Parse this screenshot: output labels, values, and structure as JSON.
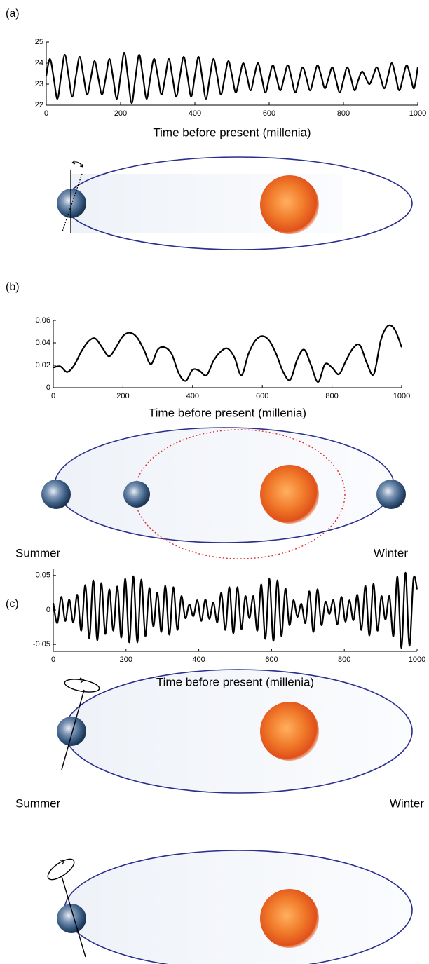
{
  "chart_data": [
    {
      "type": "line",
      "panel_label": "(a)",
      "x_label": "Time before present (millenia)",
      "color": "#000000",
      "xlim": [
        0,
        1000
      ],
      "xticks": [
        0,
        200,
        400,
        600,
        800,
        1000
      ],
      "ylim": [
        22,
        25
      ],
      "yticks": [
        22,
        23,
        24,
        25
      ],
      "x": [
        0,
        10,
        20,
        30,
        40,
        50,
        60,
        70,
        80,
        90,
        100,
        110,
        120,
        130,
        140,
        150,
        160,
        170,
        180,
        190,
        200,
        210,
        220,
        230,
        240,
        250,
        260,
        270,
        280,
        290,
        300,
        310,
        320,
        330,
        340,
        350,
        360,
        370,
        380,
        390,
        400,
        410,
        420,
        430,
        440,
        450,
        460,
        470,
        480,
        490,
        500,
        510,
        520,
        530,
        540,
        550,
        560,
        570,
        580,
        590,
        600,
        610,
        620,
        630,
        640,
        650,
        660,
        670,
        680,
        690,
        700,
        710,
        720,
        730,
        740,
        750,
        760,
        770,
        780,
        790,
        800,
        810,
        820,
        830,
        840,
        850,
        860,
        870,
        880,
        890,
        900,
        910,
        920,
        930,
        940,
        950,
        960,
        970,
        980,
        990,
        1000
      ],
      "values": [
        23.4,
        24.2,
        23.3,
        22.3,
        23.4,
        24.4,
        23.4,
        22.4,
        23.4,
        24.3,
        23.4,
        22.5,
        23.3,
        24.1,
        23.3,
        22.5,
        23.3,
        24.2,
        23.3,
        22.3,
        23.4,
        24.5,
        23.3,
        22.1,
        23.3,
        24.4,
        23.4,
        22.3,
        23.3,
        24.2,
        23.4,
        22.5,
        23.3,
        24.2,
        23.3,
        22.4,
        23.4,
        24.3,
        23.4,
        22.4,
        23.4,
        24.3,
        23.3,
        22.3,
        23.3,
        24.2,
        23.4,
        22.5,
        23.3,
        24.1,
        23.4,
        22.6,
        23.3,
        24.0,
        23.4,
        22.7,
        23.4,
        24.0,
        23.3,
        22.6,
        23.3,
        23.9,
        23.3,
        22.7,
        23.3,
        23.9,
        23.3,
        22.6,
        23.2,
        23.8,
        23.3,
        22.7,
        23.3,
        23.9,
        23.4,
        22.8,
        23.3,
        23.8,
        23.2,
        22.6,
        23.2,
        23.8,
        23.3,
        22.7,
        23.2,
        23.6,
        23.3,
        23.0,
        23.4,
        23.8,
        23.3,
        22.8,
        23.4,
        24.0,
        23.4,
        22.7,
        23.3,
        23.9,
        23.4,
        22.8,
        23.8
      ]
    },
    {
      "type": "line",
      "panel_label": "(b)",
      "x_label": "Time before present (millenia)",
      "color": "#000000",
      "diagram_labels": [
        "Summer",
        "Winter"
      ],
      "xlim": [
        0,
        1000
      ],
      "xticks": [
        0,
        200,
        400,
        600,
        800,
        1000
      ],
      "ylim": [
        0,
        0.06
      ],
      "yticks": [
        0,
        0.02,
        0.04,
        0.06
      ],
      "x": [
        0,
        20,
        40,
        60,
        80,
        100,
        120,
        140,
        160,
        180,
        200,
        220,
        240,
        260,
        280,
        300,
        320,
        340,
        360,
        380,
        400,
        420,
        440,
        460,
        480,
        500,
        520,
        540,
        560,
        580,
        600,
        620,
        640,
        660,
        680,
        700,
        720,
        740,
        760,
        780,
        800,
        820,
        840,
        860,
        880,
        900,
        920,
        940,
        960,
        980,
        1000
      ],
      "values": [
        0.018,
        0.019,
        0.014,
        0.02,
        0.032,
        0.041,
        0.044,
        0.036,
        0.028,
        0.036,
        0.046,
        0.049,
        0.045,
        0.034,
        0.021,
        0.034,
        0.036,
        0.03,
        0.013,
        0.006,
        0.016,
        0.015,
        0.011,
        0.024,
        0.032,
        0.035,
        0.027,
        0.011,
        0.03,
        0.042,
        0.046,
        0.042,
        0.03,
        0.014,
        0.007,
        0.025,
        0.034,
        0.02,
        0.005,
        0.021,
        0.018,
        0.012,
        0.024,
        0.035,
        0.038,
        0.022,
        0.012,
        0.042,
        0.055,
        0.052,
        0.036
      ]
    },
    {
      "type": "line",
      "panel_label": "(c)",
      "x_label": "Time before present (millenia)",
      "color": "#000000",
      "diagram_labels": [
        "Summer",
        "Winter"
      ],
      "xlim": [
        0,
        1000
      ],
      "xticks": [
        0,
        200,
        400,
        600,
        800,
        1000
      ],
      "ylim": [
        -0.06,
        0.06
      ],
      "yticks": [
        -0.05,
        0,
        0.05
      ],
      "x": [
        0,
        11,
        22,
        33,
        44,
        55,
        66,
        77,
        88,
        99,
        110,
        121,
        132,
        143,
        154,
        165,
        176,
        187,
        198,
        209,
        220,
        231,
        242,
        253,
        264,
        275,
        286,
        297,
        308,
        319,
        330,
        341,
        352,
        363,
        374,
        385,
        396,
        407,
        418,
        429,
        440,
        451,
        462,
        473,
        484,
        495,
        506,
        517,
        528,
        539,
        550,
        561,
        572,
        583,
        594,
        605,
        616,
        627,
        638,
        649,
        660,
        671,
        682,
        693,
        704,
        715,
        726,
        737,
        748,
        759,
        770,
        781,
        792,
        803,
        814,
        825,
        836,
        847,
        858,
        869,
        880,
        891,
        902,
        913,
        924,
        935,
        946,
        957,
        968,
        979,
        990,
        1000
      ],
      "values": [
        0.01,
        -0.019,
        0.019,
        -0.016,
        0.015,
        -0.018,
        0.022,
        -0.03,
        0.036,
        -0.041,
        0.043,
        -0.044,
        0.039,
        -0.035,
        0.03,
        -0.03,
        0.034,
        -0.04,
        0.045,
        -0.047,
        0.049,
        -0.047,
        0.044,
        -0.038,
        0.032,
        -0.024,
        0.025,
        -0.032,
        0.035,
        -0.036,
        0.033,
        -0.029,
        0.02,
        -0.012,
        0.008,
        -0.009,
        0.014,
        -0.016,
        0.015,
        -0.013,
        0.011,
        -0.018,
        0.025,
        -0.029,
        0.033,
        -0.034,
        0.033,
        -0.028,
        0.02,
        -0.012,
        0.02,
        -0.03,
        0.037,
        -0.042,
        0.045,
        -0.045,
        0.043,
        -0.038,
        0.031,
        -0.022,
        0.014,
        -0.01,
        0.009,
        -0.019,
        0.027,
        -0.032,
        0.03,
        -0.022,
        0.012,
        -0.006,
        0.014,
        -0.021,
        0.019,
        -0.017,
        0.014,
        -0.015,
        0.022,
        -0.029,
        0.035,
        -0.037,
        0.038,
        -0.03,
        0.02,
        -0.014,
        0.02,
        -0.038,
        0.048,
        -0.055,
        0.054,
        -0.052,
        0.045,
        0.03
      ]
    }
  ]
}
